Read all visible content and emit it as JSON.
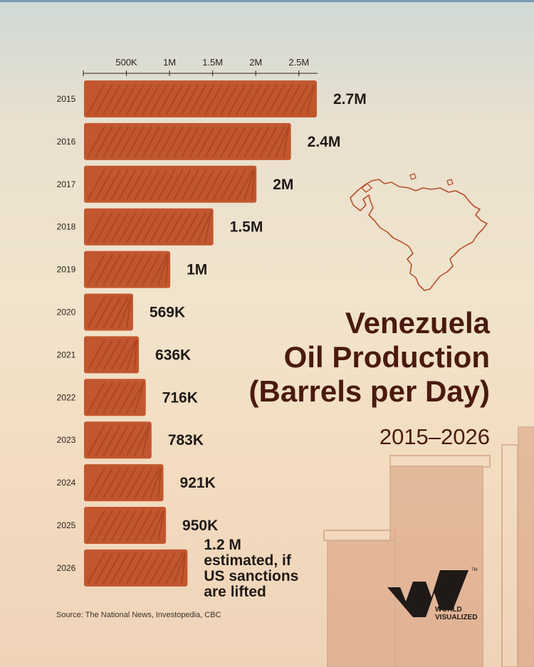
{
  "title_lines": [
    "Venezuela",
    "Oil Production",
    "(Barrels per Day)"
  ],
  "subtitle": "2015–2026",
  "source": "Source: The National News, Investopedia, CBC",
  "brand": {
    "line1": "WORLD",
    "line2": "VISUALIZED",
    "tm": "TM"
  },
  "colors": {
    "bar": "#c2572f",
    "bar_stroke": "#a8431f",
    "title": "#4a1a10",
    "map": "#b5502e"
  },
  "chart_data": {
    "type": "bar",
    "orientation": "horizontal",
    "categories": [
      "2015",
      "2016",
      "2017",
      "2018",
      "2019",
      "2020",
      "2021",
      "2022",
      "2023",
      "2024",
      "2025",
      "2026"
    ],
    "values": [
      2700000,
      2400000,
      2000000,
      1500000,
      1000000,
      569000,
      636000,
      716000,
      783000,
      921000,
      950000,
      1200000
    ],
    "value_labels": [
      "2.7M",
      "2.4M",
      "2M",
      "1.5M",
      "1M",
      "569K",
      "636K",
      "716K",
      "783K",
      "921K",
      "950K",
      "1.2 M\nestimated, if\nUS sanctions\nare lifted"
    ],
    "x_ticks": [
      500000,
      1000000,
      1500000,
      2000000,
      2500000
    ],
    "x_tick_labels": [
      "500K",
      "1M",
      "1.5M",
      "2M",
      "2.5M"
    ],
    "xlim": [
      0,
      2700000
    ],
    "axis_position": "top",
    "grid": false,
    "title": "Venezuela Oil Production (Barrels per Day)",
    "xlabel": "",
    "ylabel": ""
  }
}
